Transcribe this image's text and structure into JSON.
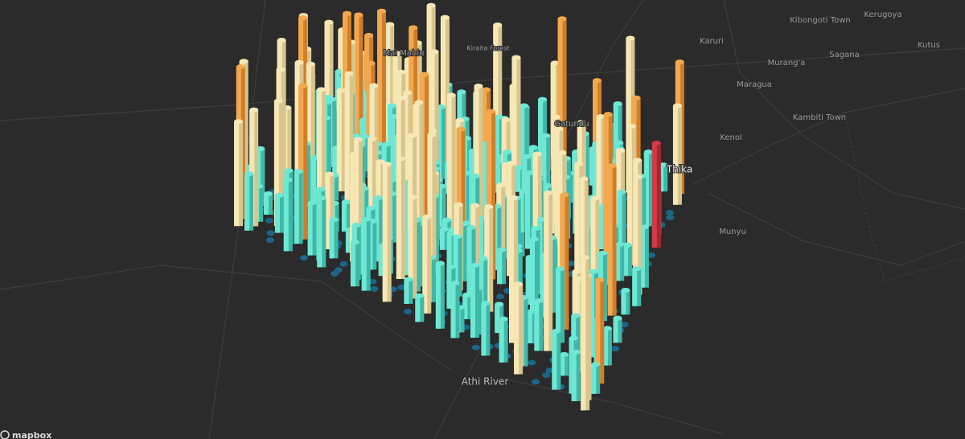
{
  "map": {
    "places": [
      "Kibongoti Town",
      "Kerugoya",
      "Karuri",
      "Kutus",
      "Mai Mahiu",
      "Kiraita Forest",
      "Murang'a",
      "Sagana",
      "Maragua",
      "Kambiti Town",
      "Gatundu",
      "Kenol",
      "Thika",
      "Munyu",
      "Athi River"
    ],
    "attribution": "mapbox"
  }
}
